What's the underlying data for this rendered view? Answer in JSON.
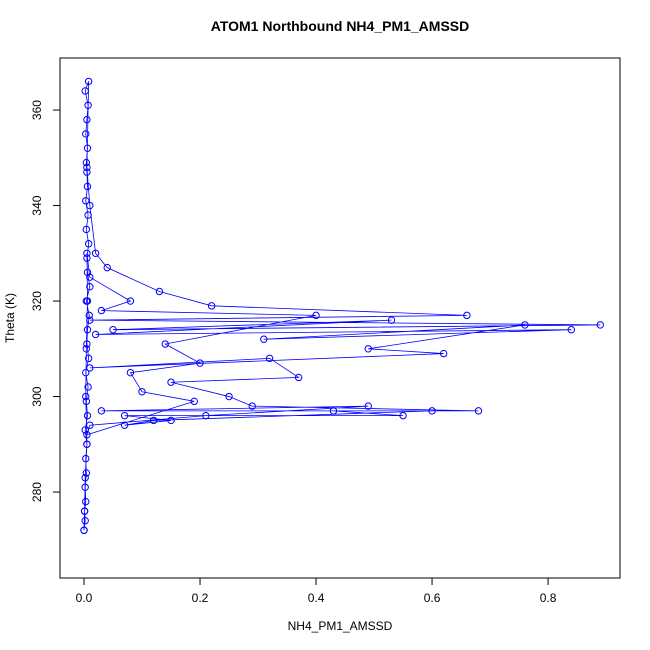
{
  "chart_data": {
    "type": "line",
    "title": "ATOM1 Northbound NH4_PM1_AMSSD",
    "x_label": "NH4_PM1_AMSSD",
    "y_label": "Theta (K)",
    "color": "#0000ff",
    "markers": true,
    "x": [
      0.0,
      0.002,
      0.001,
      0.003,
      0.002,
      0.004,
      0.003,
      0.005,
      0.002,
      0.006,
      0.004,
      0.007,
      0.003,
      0.008,
      0.005,
      0.006,
      0.009,
      0.004,
      0.01,
      0.006,
      0.005,
      0.008,
      0.004,
      0.007,
      0.003,
      0.006,
      0.005,
      0.004,
      0.006,
      0.003,
      0.005,
      0.007,
      0.002,
      0.008,
      0.005,
      0.01,
      0.02,
      0.04,
      0.13,
      0.22,
      0.66,
      0.01,
      0.89,
      0.05,
      0.53,
      0.02,
      0.84,
      0.31,
      0.76,
      0.49,
      0.62,
      0.01,
      0.32,
      0.37,
      0.15,
      0.25,
      0.29,
      0.68,
      0.43,
      0.55,
      0.07,
      0.15,
      0.07,
      0.12,
      0.6,
      0.03,
      0.49,
      0.21,
      0.01,
      0.005,
      0.19,
      0.1,
      0.08,
      0.2,
      0.14,
      0.4,
      0.03,
      0.08,
      0.01,
      0.005,
      0.006,
      0.004,
      0.003,
      0.005,
      0.002,
      0.001,
      0.0
    ],
    "values": [
      272,
      274,
      276,
      278,
      281,
      284,
      287,
      290,
      293,
      296,
      299,
      302,
      305,
      308,
      311,
      314,
      317,
      320,
      323,
      326,
      329,
      332,
      335,
      338,
      341,
      344,
      347,
      349,
      352,
      355,
      358,
      361,
      364,
      366,
      348,
      340,
      330,
      327,
      322,
      319,
      317,
      316,
      315,
      314,
      316,
      313,
      314,
      312,
      315,
      310,
      309,
      306,
      308,
      304,
      303,
      300,
      298,
      297,
      297,
      296,
      296,
      295,
      294,
      295,
      297,
      297,
      298,
      296,
      294,
      292,
      299,
      301,
      305,
      307,
      311,
      317,
      318,
      320,
      325,
      330,
      320,
      310,
      300,
      290,
      283,
      276,
      272
    ],
    "xlim": [
      -0.0414,
      0.924
    ],
    "ylim": [
      262,
      370.9
    ],
    "xticks": [
      {
        "value": 0,
        "label": "0.0"
      },
      {
        "value": 0.2,
        "label": "0.2"
      },
      {
        "value": 0.4,
        "label": "0.4"
      },
      {
        "value": 0.6,
        "label": "0.6"
      },
      {
        "value": 0.8,
        "label": "0.8"
      }
    ],
    "yticks": [
      280,
      300,
      320,
      340,
      360
    ]
  }
}
